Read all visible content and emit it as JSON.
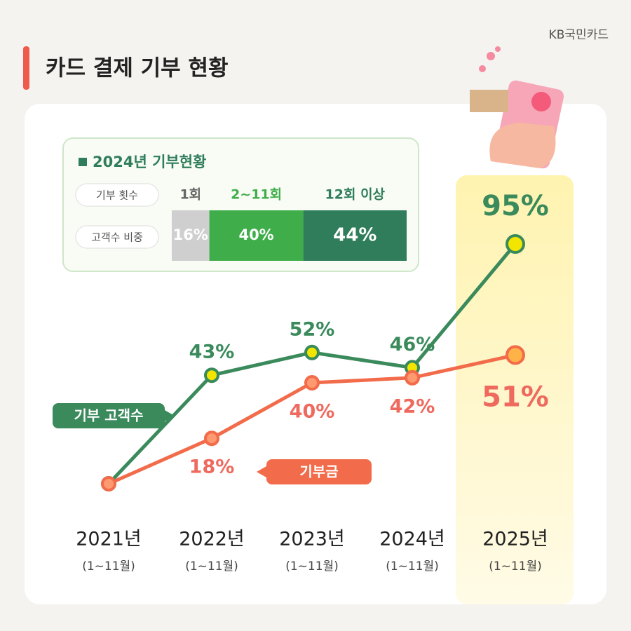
{
  "header": {
    "title": "카드 결제 기부 현황",
    "brand": "KB국민카드"
  },
  "chart_data": [
    {
      "type": "line",
      "categories": [
        "2021년",
        "2022년",
        "2023년",
        "2024년",
        "2025년"
      ],
      "x_sublabels": [
        "(1~11월)",
        "(1~11월)",
        "(1~11월)",
        "(1~11월)",
        "(1~11월)"
      ],
      "ylim": [
        0,
        100
      ],
      "series": [
        {
          "name": "기부 고객수",
          "color": "#3a8a5c",
          "values": [
            0,
            43,
            52,
            46,
            95
          ],
          "value_labels": [
            null,
            "43%",
            "52%",
            "46%",
            "95%"
          ]
        },
        {
          "name": "기부금",
          "color": "#f26b4a",
          "values": [
            0,
            18,
            40,
            42,
            51
          ],
          "value_labels": [
            null,
            "18%",
            "40%",
            "42%",
            "51%"
          ]
        }
      ]
    },
    {
      "type": "stacked-bar",
      "title": "2024년 기부현황",
      "category_header": "기부 횟수",
      "value_header": "고객수 비중",
      "categories": [
        "1회",
        "2~11회",
        "12회 이상"
      ],
      "colors": [
        "#cfcfcf",
        "#3fae4a",
        "#2f7d5a"
      ],
      "values": [
        16,
        40,
        44
      ],
      "value_labels": [
        "16%",
        "40%",
        "44%"
      ]
    }
  ]
}
